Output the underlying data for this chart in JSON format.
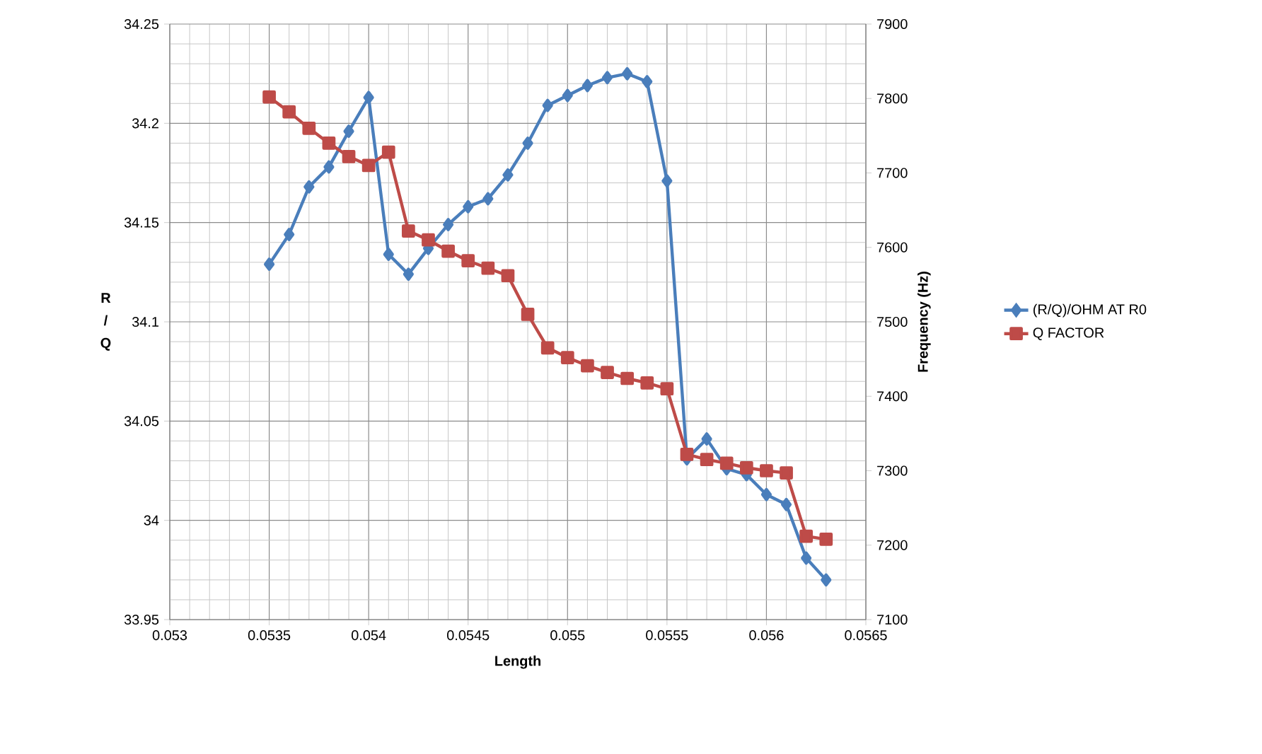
{
  "chart_data": {
    "type": "line",
    "xlabel": "Length",
    "ylabel": "R / Q",
    "y2label": "Frequency (Hz)",
    "x": [
      0.0535,
      0.0536,
      0.0537,
      0.0538,
      0.0539,
      0.054,
      0.0541,
      0.0542,
      0.0543,
      0.0544,
      0.0545,
      0.0546,
      0.0547,
      0.0548,
      0.0549,
      0.055,
      0.0551,
      0.0552,
      0.0553,
      0.0554,
      0.0555,
      0.0556,
      0.0557,
      0.0558,
      0.0559,
      0.056,
      0.0561,
      0.0562,
      0.0563
    ],
    "series": [
      {
        "name": "(R/Q)/OHM AT R0",
        "color": "#4a7ebb",
        "marker": "diamond",
        "values": [
          34.129,
          34.144,
          34.168,
          34.178,
          34.196,
          34.213,
          34.134,
          34.124,
          34.137,
          34.149,
          34.158,
          34.162,
          34.174,
          34.19,
          34.209,
          34.214,
          34.219,
          34.223,
          34.225,
          34.221,
          34.171,
          34.031,
          34.041,
          34.026,
          34.023,
          34.013,
          34.008,
          33.981,
          33.97
        ]
      },
      {
        "name": "Q FACTOR",
        "color": "#be4b48",
        "marker": "square",
        "axis": "y2",
        "values": [
          7802,
          7782,
          7760,
          7740,
          7722,
          7710,
          7728,
          7622,
          7610,
          7595,
          7582,
          7572,
          7562,
          7510,
          7465,
          7452,
          7441,
          7432,
          7424,
          7418,
          7410,
          7322,
          7315,
          7310,
          7304,
          7300,
          7297,
          7212,
          7208
        ]
      }
    ],
    "xlim": [
      0.053,
      0.0565
    ],
    "xticks": [
      0.053,
      0.0535,
      0.054,
      0.0545,
      0.055,
      0.0555,
      0.056,
      0.0565
    ],
    "ylim": [
      33.95,
      34.25
    ],
    "yticks": [
      33.95,
      34,
      34.05,
      34.1,
      34.15,
      34.2,
      34.25
    ],
    "y2lim": [
      7100,
      7900
    ],
    "y2ticks": [
      7100,
      7200,
      7300,
      7400,
      7500,
      7600,
      7700,
      7800,
      7900
    ],
    "grid": true,
    "legend": "right",
    "line_style": "solid"
  }
}
